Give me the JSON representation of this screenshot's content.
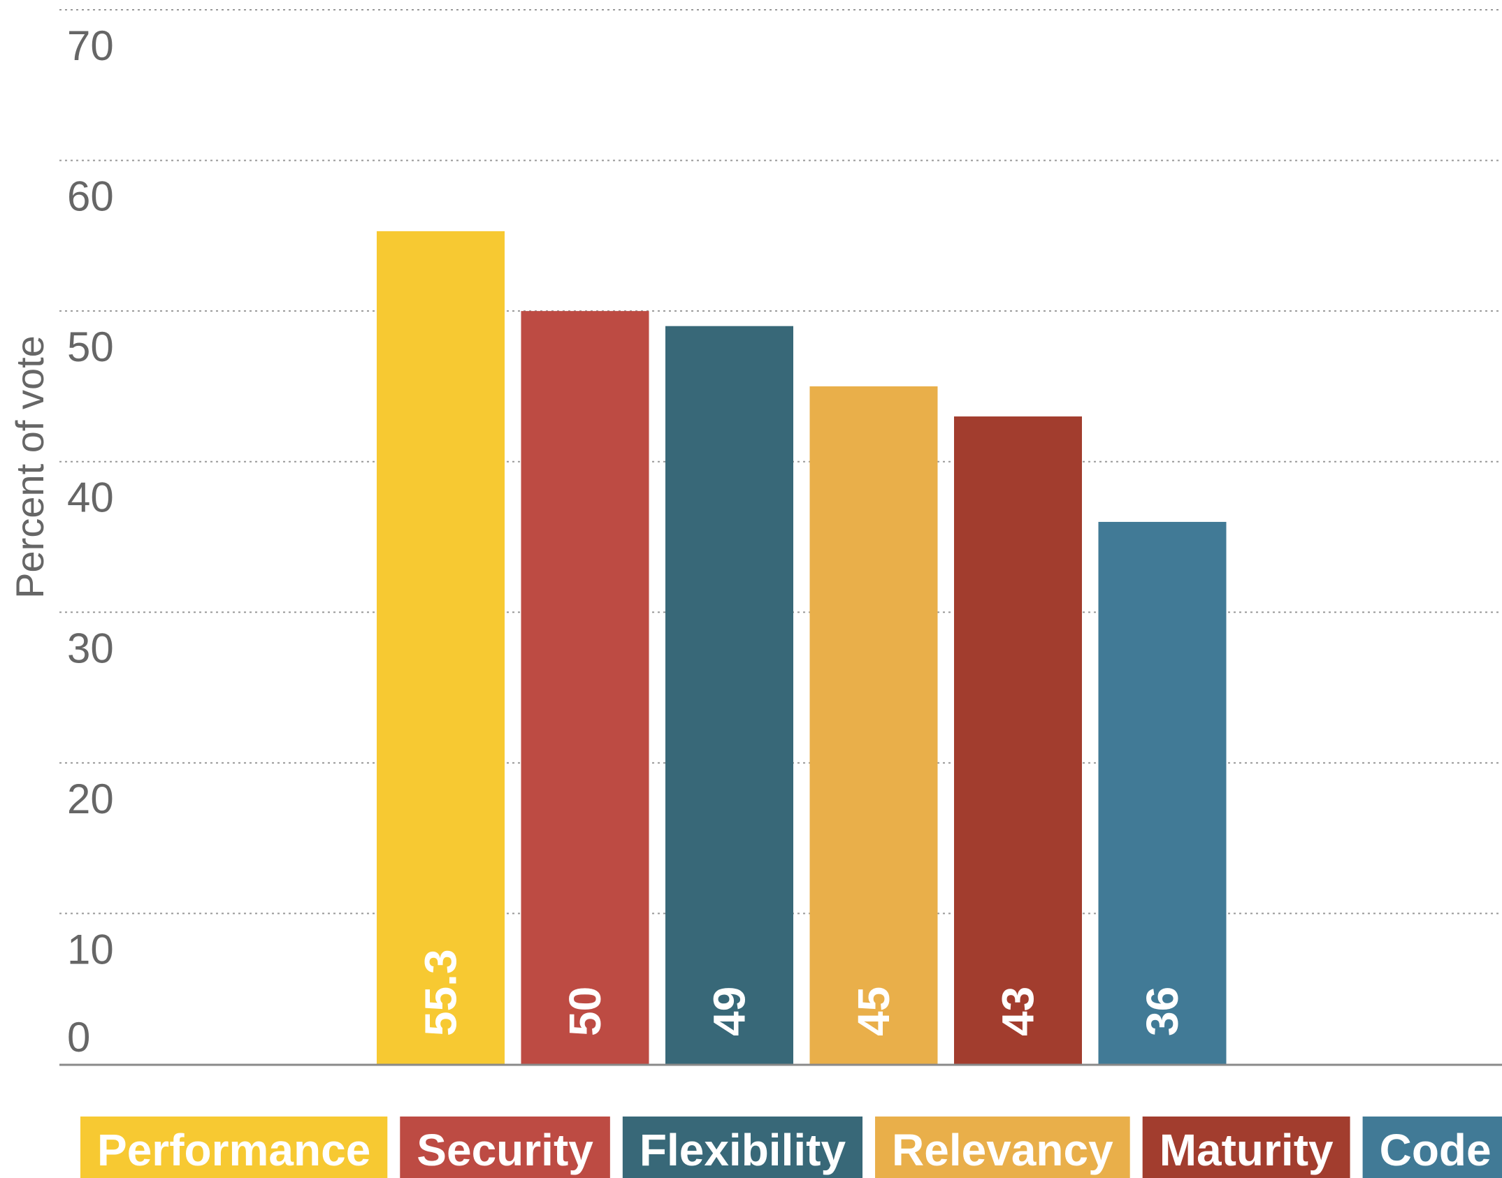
{
  "chart_data": {
    "type": "bar",
    "categories": [
      "Performance",
      "Security",
      "Flexibility",
      "Relevancy",
      "Maturity",
      "Code base"
    ],
    "values": [
      55.3,
      50,
      49,
      45,
      43,
      36
    ],
    "value_labels": [
      "55.3",
      "50",
      "49",
      "45",
      "43",
      "36"
    ],
    "colors": [
      "#F7C932",
      "#BD4B43",
      "#386878",
      "#E9AF4A",
      "#A23D2E",
      "#417A96"
    ],
    "title": "",
    "xlabel": "",
    "ylabel": "Percent of vote",
    "ylim": [
      0,
      70
    ],
    "yticks": [
      0,
      10,
      20,
      30,
      40,
      50,
      60,
      70
    ],
    "grid": true,
    "legend": "bottom"
  }
}
